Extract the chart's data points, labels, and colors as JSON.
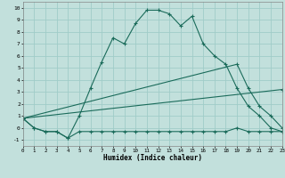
{
  "xlabel": "Humidex (Indice chaleur)",
  "bg_color": "#c2e0dc",
  "grid_color": "#a0ccc8",
  "line_color": "#1a6b5a",
  "xlim": [
    0,
    23
  ],
  "ylim": [
    -1.5,
    10.5
  ],
  "xtick_vals": [
    0,
    1,
    2,
    3,
    4,
    5,
    6,
    7,
    8,
    9,
    10,
    11,
    12,
    13,
    14,
    15,
    16,
    17,
    18,
    19,
    20,
    21,
    22,
    23
  ],
  "ytick_vals": [
    -1,
    0,
    1,
    2,
    3,
    4,
    5,
    6,
    7,
    8,
    9,
    10
  ],
  "series": [
    {
      "x": [
        0,
        1,
        2,
        3,
        4,
        5,
        6,
        7,
        8,
        9,
        10,
        11,
        12,
        13,
        14,
        15,
        16,
        17,
        18,
        19,
        20,
        21,
        22,
        23
      ],
      "y": [
        0.8,
        0.0,
        -0.3,
        -0.3,
        -0.85,
        1.0,
        3.3,
        5.5,
        7.5,
        7.0,
        8.7,
        9.8,
        9.8,
        9.5,
        8.5,
        9.3,
        7.0,
        6.0,
        5.3,
        3.3,
        1.8,
        1.0,
        0.0,
        -0.3
      ]
    },
    {
      "x": [
        0,
        1,
        2,
        3,
        4,
        5,
        6,
        7,
        8,
        9,
        10,
        11,
        12,
        13,
        14,
        15,
        16,
        17,
        18,
        19,
        20,
        21,
        22,
        23
      ],
      "y": [
        0.8,
        0.0,
        -0.3,
        -0.3,
        -0.85,
        -0.3,
        -0.3,
        -0.3,
        -0.3,
        -0.3,
        -0.3,
        -0.3,
        -0.3,
        -0.3,
        -0.3,
        -0.3,
        -0.3,
        -0.3,
        -0.3,
        0.0,
        -0.3,
        -0.3,
        -0.3,
        -0.3
      ]
    },
    {
      "x": [
        0,
        19,
        20,
        21,
        22,
        23
      ],
      "y": [
        0.8,
        5.3,
        3.3,
        1.8,
        1.0,
        0.0
      ]
    },
    {
      "x": [
        0,
        23
      ],
      "y": [
        0.8,
        3.2
      ]
    }
  ]
}
